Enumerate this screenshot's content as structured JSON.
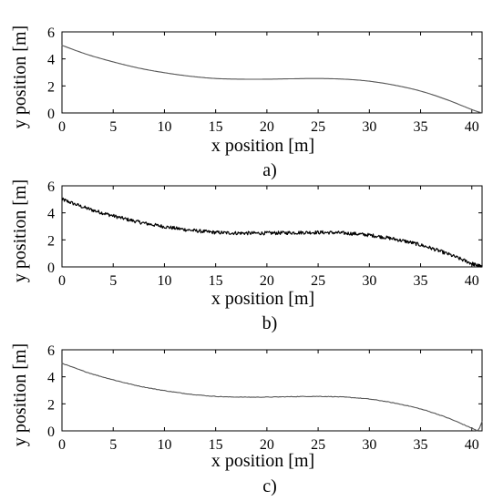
{
  "chart_data": [
    {
      "type": "line",
      "panel_label": "a)",
      "xlabel": "x position [m]",
      "ylabel": "y position [m]",
      "xlim": [
        0,
        41
      ],
      "ylim": [
        0,
        6
      ],
      "xticks": [
        0,
        5,
        10,
        15,
        20,
        25,
        30,
        35,
        40
      ],
      "yticks": [
        0,
        2,
        4,
        6
      ],
      "noise": 0,
      "line_color": "#555555",
      "x": [
        0,
        2.5,
        5,
        7.5,
        10,
        12.5,
        15,
        17.5,
        20,
        22.5,
        25,
        27.5,
        30,
        32.5,
        35,
        37.5,
        40,
        41
      ],
      "y": [
        5.0,
        4.32,
        3.78,
        3.32,
        2.98,
        2.72,
        2.55,
        2.5,
        2.5,
        2.53,
        2.55,
        2.5,
        2.35,
        2.05,
        1.62,
        1.0,
        0.25,
        0.0
      ]
    },
    {
      "type": "line",
      "panel_label": "b)",
      "xlabel": "x position [m]",
      "ylabel": "y position [m]",
      "xlim": [
        0,
        41
      ],
      "ylim": [
        0,
        6
      ],
      "xticks": [
        0,
        5,
        10,
        15,
        20,
        25,
        30,
        35,
        40
      ],
      "yticks": [
        0,
        2,
        4,
        6
      ],
      "noise": 0.13,
      "line_color": "#000000",
      "x": [
        0,
        2.5,
        5,
        7.5,
        10,
        12.5,
        15,
        17.5,
        20,
        22.5,
        25,
        27.5,
        30,
        32.5,
        35,
        37.5,
        40,
        41
      ],
      "y": [
        5.0,
        4.32,
        3.78,
        3.32,
        2.98,
        2.72,
        2.55,
        2.5,
        2.5,
        2.53,
        2.55,
        2.5,
        2.35,
        2.05,
        1.62,
        1.0,
        0.25,
        0.0
      ]
    },
    {
      "type": "line",
      "panel_label": "c)",
      "xlabel": "x position [m]",
      "ylabel": "y position [m]",
      "xlim": [
        0,
        41
      ],
      "ylim": [
        0,
        6
      ],
      "xticks": [
        0,
        5,
        10,
        15,
        20,
        25,
        30,
        35,
        40
      ],
      "yticks": [
        0,
        2,
        4,
        6
      ],
      "noise": 0.02,
      "line_color": "#555555",
      "x": [
        0,
        2.5,
        5,
        7.5,
        10,
        12.5,
        15,
        17.5,
        20,
        22.5,
        25,
        27.5,
        30,
        32.5,
        35,
        37.5,
        40,
        40.6,
        41
      ],
      "y": [
        5.0,
        4.32,
        3.78,
        3.32,
        2.98,
        2.72,
        2.55,
        2.5,
        2.5,
        2.53,
        2.55,
        2.5,
        2.35,
        2.05,
        1.62,
        1.0,
        0.2,
        0.05,
        0.7
      ]
    }
  ]
}
